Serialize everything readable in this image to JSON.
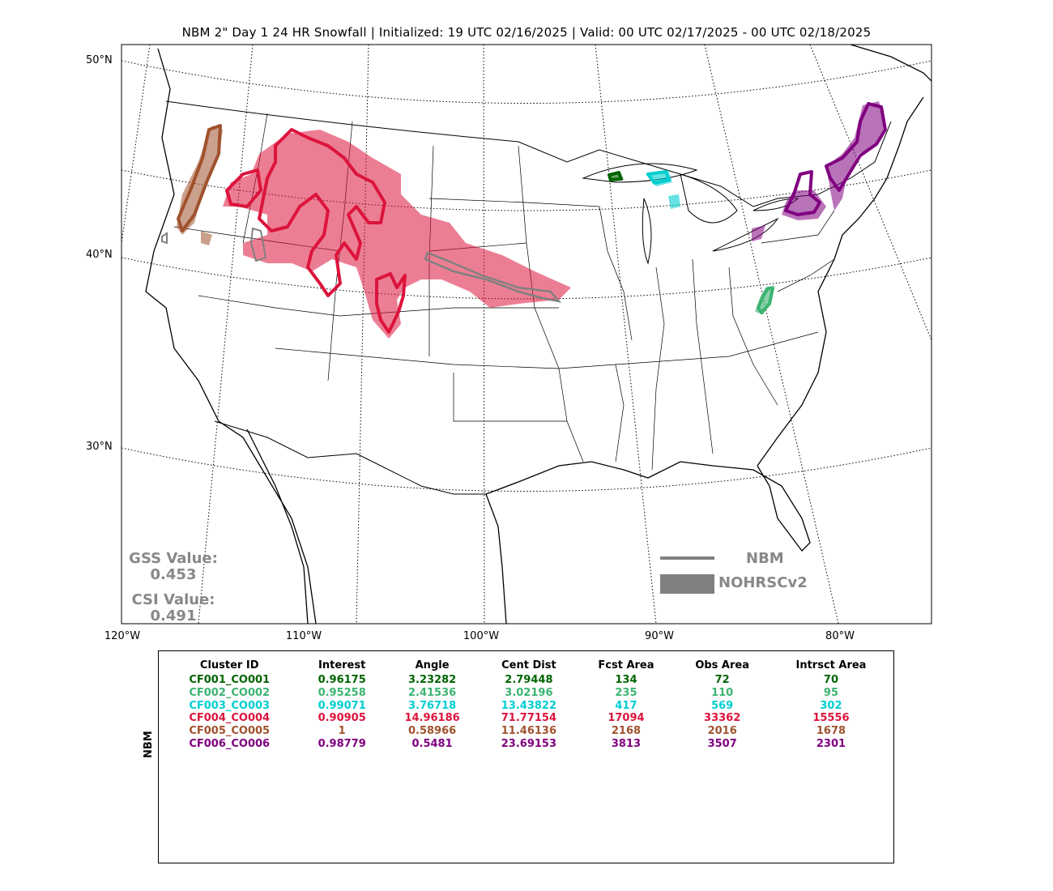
{
  "title": "NBM 2\" Day 1 24 HR Snowfall | Initialized: 19 UTC 02/16/2025 | Valid: 00 UTC 02/17/2025 - 00 UTC 02/18/2025",
  "lat_labels": [
    "50°N",
    "40°N",
    "30°N"
  ],
  "lon_labels": [
    "120°W",
    "110°W",
    "100°W",
    "90°W",
    "80°W"
  ],
  "gss": {
    "label": "GSS Value:",
    "value": "0.453"
  },
  "csi": {
    "label": "CSI Value:",
    "value": "0.491"
  },
  "legend": [
    {
      "label": "NBM",
      "symbol": "line",
      "color": "#808080"
    },
    {
      "label": "NOHRSCv2",
      "symbol": "fill",
      "color": "#808080"
    }
  ],
  "table": {
    "side_label": "NBM",
    "headers": [
      "Cluster ID",
      "Interest",
      "Angle",
      "Cent Dist",
      "Fcst Area",
      "Obs Area",
      "Intrsct Area"
    ],
    "rows": [
      {
        "color": "#006400",
        "cells": [
          "CF001_CO001",
          "0.96175",
          "3.23282",
          "2.79448",
          "134",
          "72",
          "70"
        ]
      },
      {
        "color": "#3cb371",
        "cells": [
          "CF002_CO002",
          "0.95258",
          "2.41536",
          "3.02196",
          "235",
          "110",
          "95"
        ]
      },
      {
        "color": "#00ced1",
        "cells": [
          "CF003_CO003",
          "0.99071",
          "3.76718",
          "13.43822",
          "417",
          "569",
          "302"
        ]
      },
      {
        "color": "#dc143c",
        "cells": [
          "CF004_CO004",
          "0.90905",
          "14.96186",
          "71.77154",
          "17094",
          "33362",
          "15556"
        ]
      },
      {
        "color": "#a0522d",
        "cells": [
          "CF005_CO005",
          "1",
          "0.58966",
          "11.46136",
          "2168",
          "2016",
          "1678"
        ]
      },
      {
        "color": "#800080",
        "cells": [
          "CF006_CO006",
          "0.98779",
          "0.5481",
          "23.69153",
          "3813",
          "3507",
          "2301"
        ]
      }
    ]
  },
  "cluster_colors": {
    "CF001_CO001": "#006400",
    "CF002_CO002": "#3cb371",
    "CF003_CO003": "#00ced1",
    "CF004_CO004": "#dc143c",
    "CF005_CO005": "#a0522d",
    "CF006_CO006": "#800080"
  }
}
